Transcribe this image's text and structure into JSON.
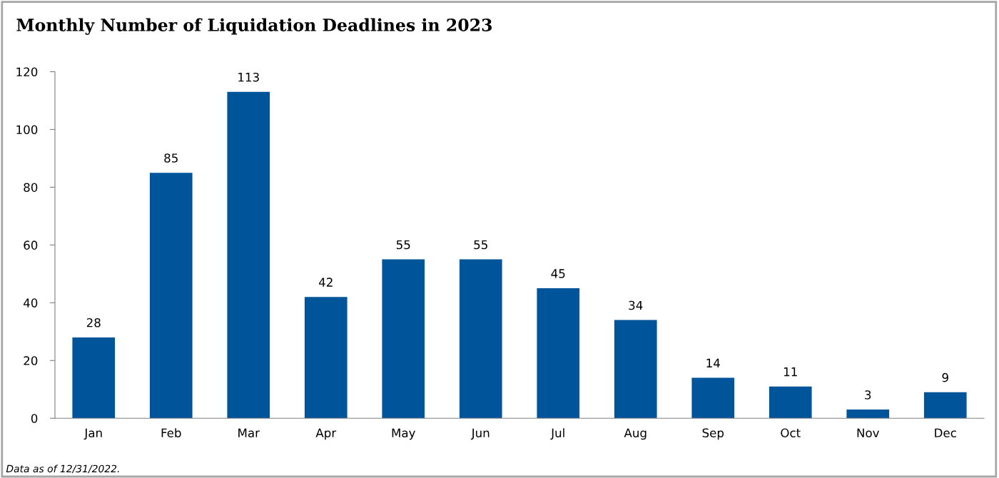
{
  "chart_data": {
    "type": "bar",
    "title": "Monthly Number of Liquidation Deadlines in 2023",
    "categories": [
      "Jan",
      "Feb",
      "Mar",
      "Apr",
      "May",
      "Jun",
      "Jul",
      "Aug",
      "Sep",
      "Oct",
      "Nov",
      "Dec"
    ],
    "values": [
      28,
      85,
      113,
      42,
      55,
      55,
      45,
      34,
      14,
      11,
      3,
      9
    ],
    "color": "#00549a",
    "ylim": [
      0,
      120
    ],
    "yticks": [
      0,
      20,
      40,
      60,
      80,
      100,
      120
    ],
    "data_labels": true,
    "grid": false,
    "annotations": [
      "Data as of 12/31/2022."
    ]
  }
}
